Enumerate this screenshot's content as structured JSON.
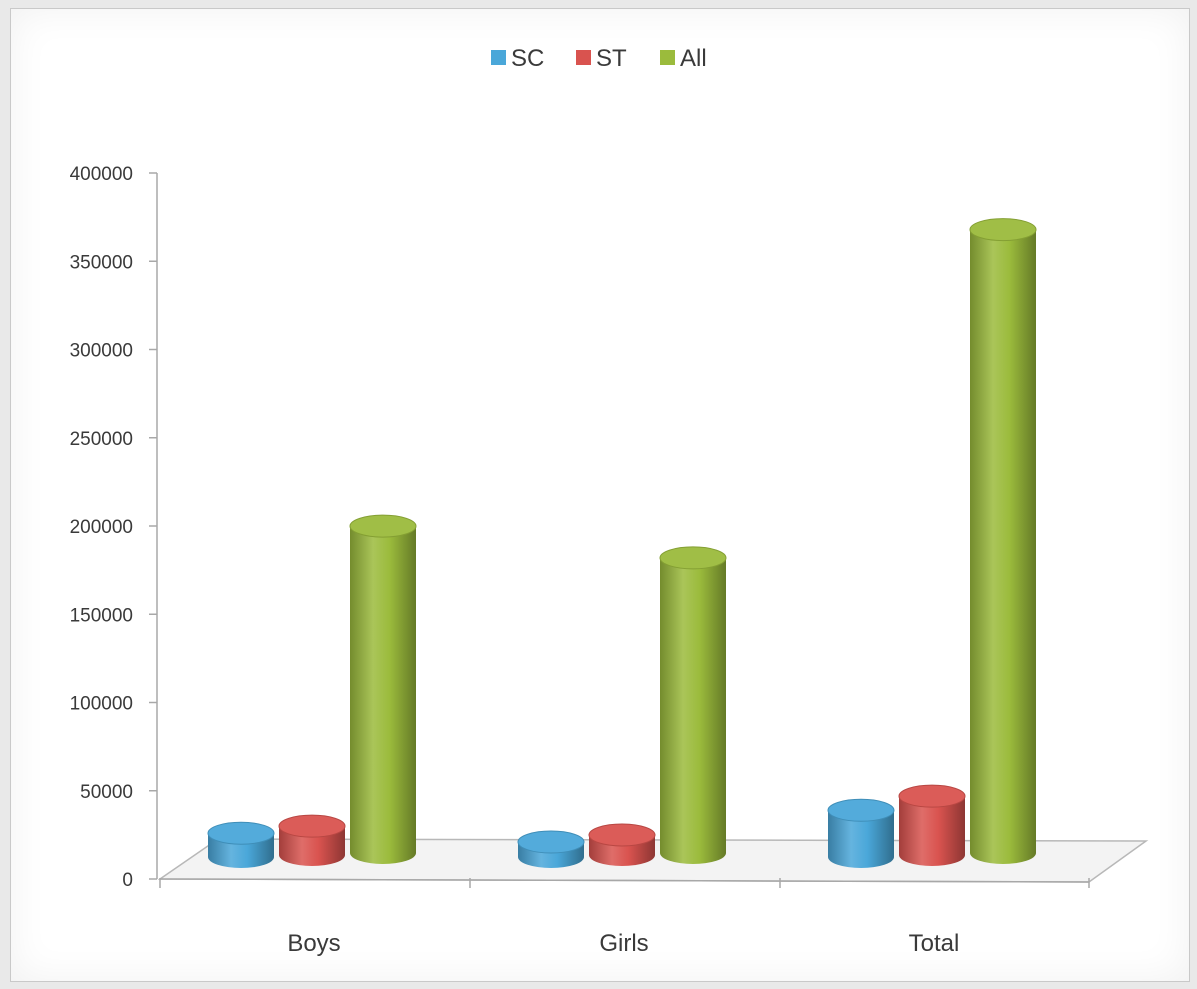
{
  "chart_data": {
    "type": "bar",
    "title": "",
    "xlabel": "",
    "ylabel": "",
    "categories": [
      "Boys",
      "Girls",
      "Total"
    ],
    "series": [
      {
        "name": "SC",
        "color": "#4aa7d9",
        "values": [
          18000,
          13000,
          31000
        ]
      },
      {
        "name": "ST",
        "color": "#d9534f",
        "values": [
          22000,
          17000,
          39000
        ]
      },
      {
        "name": "All",
        "color": "#9bbb3c",
        "values": [
          192000,
          174000,
          360000
        ]
      }
    ],
    "ylim": [
      0,
      400000
    ],
    "yticks": [
      0,
      50000,
      100000,
      150000,
      200000,
      250000,
      300000,
      350000,
      400000
    ],
    "ytick_labels": [
      "0",
      "50000",
      "100000",
      "150000",
      "200000",
      "250000",
      "300000",
      "350000",
      "400000"
    ],
    "legend_position": "top-center",
    "style": "3d-cylinder",
    "grid": false
  }
}
